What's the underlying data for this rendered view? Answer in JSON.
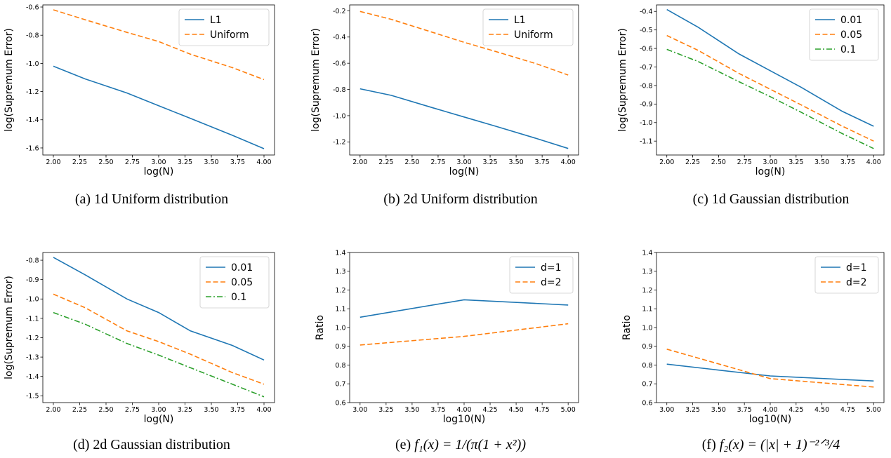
{
  "chart_data": [
    {
      "type": "line",
      "caption": "(a)  1d Uniform distribution",
      "xlabel": "log(N)",
      "ylabel": "log(Supremum Error)",
      "xlim": [
        1.9,
        4.1
      ],
      "ylim": [
        -1.65,
        -0.585
      ],
      "xticks": [
        "2.00",
        "2.25",
        "2.50",
        "2.75",
        "3.00",
        "3.25",
        "3.50",
        "3.75",
        "4.00"
      ],
      "yticks": [
        "-1.6",
        "-1.4",
        "-1.2",
        "-1.0",
        "-0.8",
        "-0.6"
      ],
      "legend": "top-right",
      "series": [
        {
          "name": "L1",
          "color": "#1f77b4",
          "dash": "solid",
          "x": [
            2.0,
            2.301,
            2.699,
            3.0,
            3.301,
            3.699,
            4.0
          ],
          "y": [
            -1.02,
            -1.11,
            -1.21,
            -1.3,
            -1.39,
            -1.51,
            -1.605
          ]
        },
        {
          "name": "Uniform",
          "color": "#ff7f0e",
          "dash": "dashed",
          "x": [
            2.0,
            2.301,
            2.699,
            3.0,
            3.301,
            3.699,
            4.0
          ],
          "y": [
            -0.62,
            -0.69,
            -0.78,
            -0.845,
            -0.935,
            -1.03,
            -1.115
          ]
        }
      ]
    },
    {
      "type": "line",
      "caption": "(b)  2d Uniform distribution",
      "xlabel": "log(N)",
      "ylabel": "log(Supremum Error)",
      "xlim": [
        1.9,
        4.1
      ],
      "ylim": [
        -1.3,
        -0.155
      ],
      "xticks": [
        "2.00",
        "2.25",
        "2.50",
        "2.75",
        "3.00",
        "3.25",
        "3.50",
        "3.75",
        "4.00"
      ],
      "yticks": [
        "-1.2",
        "-1.0",
        "-0.8",
        "-0.6",
        "-0.4",
        "-0.2"
      ],
      "legend": "top-right",
      "series": [
        {
          "name": "L1",
          "color": "#1f77b4",
          "dash": "solid",
          "x": [
            2.0,
            2.301,
            2.699,
            3.0,
            3.301,
            3.699,
            4.0
          ],
          "y": [
            -0.795,
            -0.845,
            -0.94,
            -1.01,
            -1.08,
            -1.175,
            -1.25
          ]
        },
        {
          "name": "Uniform",
          "color": "#ff7f0e",
          "dash": "dashed",
          "x": [
            2.0,
            2.301,
            2.699,
            3.0,
            3.301,
            3.699,
            4.0
          ],
          "y": [
            -0.205,
            -0.265,
            -0.365,
            -0.44,
            -0.51,
            -0.605,
            -0.69
          ]
        }
      ]
    },
    {
      "type": "line",
      "caption": "(c)  1d Gaussian distribution",
      "xlabel": "log(N)",
      "ylabel": "log(Supremum Error)",
      "xlim": [
        1.9,
        4.1
      ],
      "ylim": [
        -1.175,
        -0.365
      ],
      "xticks": [
        "2.00",
        "2.25",
        "2.50",
        "2.75",
        "3.00",
        "3.25",
        "3.50",
        "3.75",
        "4.00"
      ],
      "yticks": [
        "-1.1",
        "-1.0",
        "-0.9",
        "-0.8",
        "-0.7",
        "-0.6",
        "-0.5",
        "-0.4"
      ],
      "legend": "top-right",
      "series": [
        {
          "name": "0.01",
          "color": "#1f77b4",
          "dash": "solid",
          "x": [
            2.0,
            2.301,
            2.699,
            3.0,
            3.301,
            3.699,
            4.0
          ],
          "y": [
            -0.39,
            -0.485,
            -0.63,
            -0.72,
            -0.81,
            -0.94,
            -1.02
          ]
        },
        {
          "name": "0.05",
          "color": "#ff7f0e",
          "dash": "dashed",
          "x": [
            2.0,
            2.301,
            2.699,
            3.0,
            3.301,
            3.699,
            4.0
          ],
          "y": [
            -0.53,
            -0.61,
            -0.735,
            -0.82,
            -0.905,
            -1.02,
            -1.1
          ]
        },
        {
          "name": "0.1",
          "color": "#2ca02c",
          "dash": "dashdot",
          "x": [
            2.0,
            2.301,
            2.699,
            3.0,
            3.301,
            3.699,
            4.0
          ],
          "y": [
            -0.605,
            -0.67,
            -0.78,
            -0.86,
            -0.945,
            -1.06,
            -1.14
          ]
        }
      ]
    },
    {
      "type": "line",
      "caption": "(d)  2d Gaussian distribution",
      "xlabel": "log(N)",
      "ylabel": "log(Supremum Error)",
      "xlim": [
        1.9,
        4.1
      ],
      "ylim": [
        -1.535,
        -0.76
      ],
      "xticks": [
        "2.00",
        "2.25",
        "2.50",
        "2.75",
        "3.00",
        "3.25",
        "3.50",
        "3.75",
        "4.00"
      ],
      "yticks": [
        "-1.5",
        "-1.4",
        "-1.3",
        "-1.2",
        "-1.1",
        "-1.0",
        "-0.9",
        "-0.8"
      ],
      "legend": "top-right",
      "series": [
        {
          "name": "0.01",
          "color": "#1f77b4",
          "dash": "solid",
          "x": [
            2.0,
            2.301,
            2.699,
            3.0,
            3.301,
            3.699,
            4.0
          ],
          "y": [
            -0.785,
            -0.875,
            -1.0,
            -1.07,
            -1.165,
            -1.24,
            -1.315
          ]
        },
        {
          "name": "0.05",
          "color": "#ff7f0e",
          "dash": "dashed",
          "x": [
            2.0,
            2.301,
            2.699,
            3.0,
            3.301,
            3.699,
            4.0
          ],
          "y": [
            -0.975,
            -1.045,
            -1.165,
            -1.22,
            -1.285,
            -1.38,
            -1.44
          ]
        },
        {
          "name": "0.1",
          "color": "#2ca02c",
          "dash": "dashdot",
          "x": [
            2.0,
            2.301,
            2.699,
            3.0,
            3.301,
            3.699,
            4.0
          ],
          "y": [
            -1.07,
            -1.13,
            -1.23,
            -1.29,
            -1.355,
            -1.44,
            -1.505
          ]
        }
      ]
    },
    {
      "type": "line",
      "caption_prefix": "(e)  ",
      "caption_math": "f₁(x) = 1/(π(1 + x²))",
      "xlabel": "log10(N)",
      "ylabel": "Ratio",
      "xlim": [
        2.9,
        5.1
      ],
      "ylim": [
        0.6,
        1.4
      ],
      "xticks": [
        "3.00",
        "3.25",
        "3.50",
        "3.75",
        "4.00",
        "4.25",
        "4.50",
        "4.75",
        "5.00"
      ],
      "yticks": [
        "0.6",
        "0.7",
        "0.8",
        "0.9",
        "1.0",
        "1.1",
        "1.2",
        "1.3",
        "1.4"
      ],
      "legend": "top-right",
      "series": [
        {
          "name": "d=1",
          "color": "#1f77b4",
          "dash": "solid",
          "x": [
            3.0,
            4.0,
            5.0
          ],
          "y": [
            1.055,
            1.148,
            1.12
          ]
        },
        {
          "name": "d=2",
          "color": "#ff7f0e",
          "dash": "dashed",
          "x": [
            3.0,
            4.0,
            5.0
          ],
          "y": [
            0.907,
            0.953,
            1.02
          ]
        }
      ]
    },
    {
      "type": "line",
      "caption_prefix": "(f)  ",
      "caption_math": "f₂(x) = (|x| + 1)⁻²ᐟ³/4",
      "xlabel": "log10(N)",
      "ylabel": "Ratio",
      "xlim": [
        2.9,
        5.1
      ],
      "ylim": [
        0.6,
        1.4
      ],
      "xticks": [
        "3.00",
        "3.25",
        "3.50",
        "3.75",
        "4.00",
        "4.25",
        "4.50",
        "4.75",
        "5.00"
      ],
      "yticks": [
        "0.6",
        "0.7",
        "0.8",
        "0.9",
        "1.0",
        "1.1",
        "1.2",
        "1.3",
        "1.4"
      ],
      "legend": "top-right",
      "series": [
        {
          "name": "d=1",
          "color": "#1f77b4",
          "dash": "solid",
          "x": [
            3.0,
            4.0,
            5.0
          ],
          "y": [
            0.805,
            0.742,
            0.715
          ]
        },
        {
          "name": "d=2",
          "color": "#ff7f0e",
          "dash": "dashed",
          "x": [
            3.0,
            4.0,
            5.0
          ],
          "y": [
            0.885,
            0.728,
            0.683
          ]
        }
      ]
    }
  ]
}
